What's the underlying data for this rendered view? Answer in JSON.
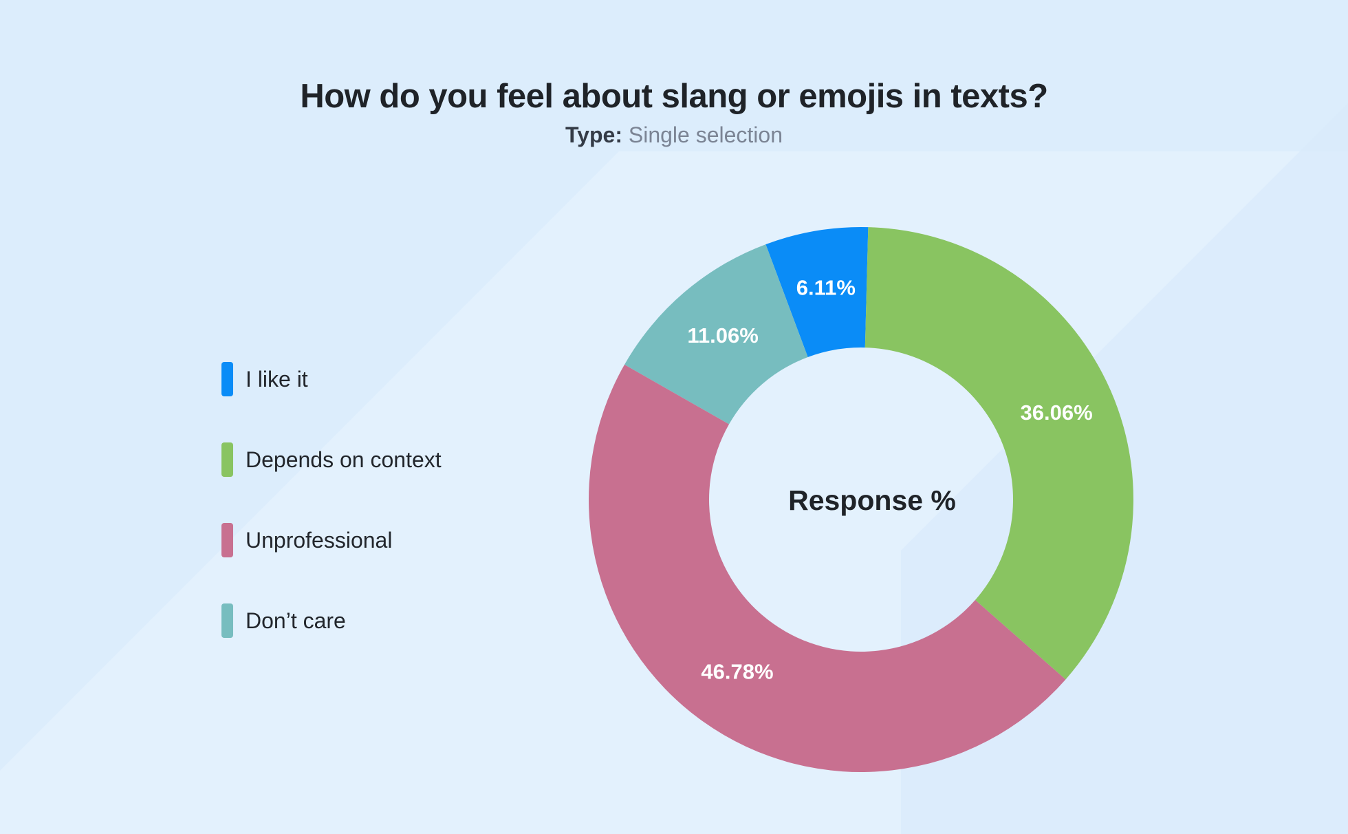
{
  "header": {
    "title": "How do you feel about slang or emojis in texts?",
    "type_label": "Type:",
    "type_value": "Single selection"
  },
  "chart_data": {
    "type": "pie",
    "variant": "donut",
    "title": "How do you feel about slang or emojis in texts?",
    "subtitle": "Type: Single selection",
    "center_label": "Response %",
    "legend_position": "left",
    "start_angle_deg": 88.5,
    "direction": "counterclockwise",
    "slices": [
      {
        "label": "I like it",
        "value": 6.11,
        "value_label": "6.11%",
        "color": "#0a8cf7"
      },
      {
        "label": "Don’t care",
        "value": 11.06,
        "value_label": "11.06%",
        "color": "#77bdbf"
      },
      {
        "label": "Unprofessional",
        "value": 46.78,
        "value_label": "46.78%",
        "color": "#c87090"
      },
      {
        "label": "Depends on context",
        "value": 36.06,
        "value_label": "36.06%",
        "color": "#89c461"
      }
    ],
    "legend": [
      {
        "label": "I like it",
        "color": "#0a8cf7"
      },
      {
        "label": "Depends on context",
        "color": "#89c461"
      },
      {
        "label": "Unprofessional",
        "color": "#c87090"
      },
      {
        "label": "Don’t care",
        "color": "#77bdbf"
      }
    ]
  }
}
